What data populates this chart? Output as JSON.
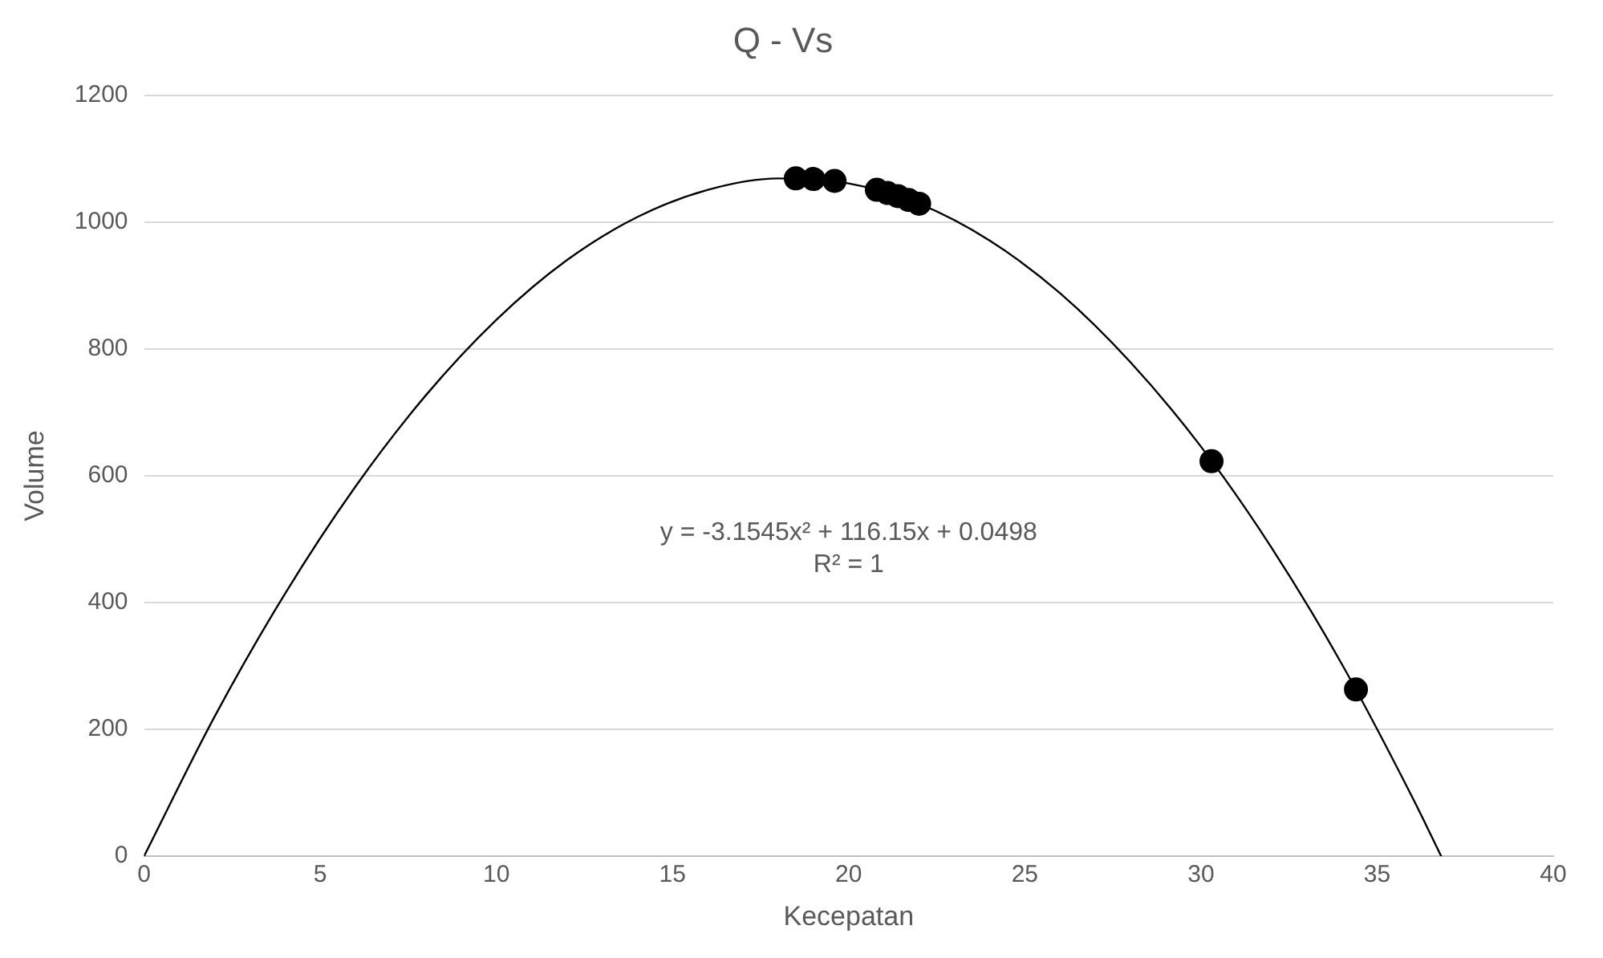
{
  "chart_data": {
    "type": "scatter",
    "title": "Q - Vs",
    "xlabel": "Kecepatan",
    "ylabel": "Volume",
    "xlim": [
      0,
      40
    ],
    "xticks": [
      0,
      5,
      10,
      15,
      20,
      25,
      30,
      35,
      40
    ],
    "ylim": [
      0,
      1200
    ],
    "yticks": [
      0,
      200,
      400,
      600,
      800,
      1000,
      1200
    ],
    "grid": "y",
    "legend": false,
    "annotations": [
      "y = -3.1545x² + 116.15x + 0.0498",
      "R² = 1"
    ],
    "series": [
      {
        "type": "line",
        "color": "#000000",
        "marker": "none",
        "line_style": "solid",
        "x": [
          0,
          2,
          4,
          6,
          8,
          10,
          12,
          14,
          16,
          18,
          20,
          22,
          24,
          26,
          28,
          30,
          32,
          34,
          36,
          36.82
        ],
        "values": [
          0,
          220,
          414,
          583,
          727,
          846,
          940,
          1008,
          1051,
          1069,
          1061,
          1029,
          971,
          888,
          779,
          646,
          487,
          303,
          93,
          0
        ]
      },
      {
        "type": "scatter",
        "color": "#000000",
        "marker": "circle",
        "x": [
          18.5,
          19.0,
          19.6,
          20.8,
          21.1,
          21.4,
          21.7,
          22.0,
          30.3,
          34.4
        ],
        "values": [
          1069,
          1068,
          1065,
          1051,
          1046,
          1041,
          1035,
          1029,
          623,
          263
        ]
      }
    ]
  }
}
